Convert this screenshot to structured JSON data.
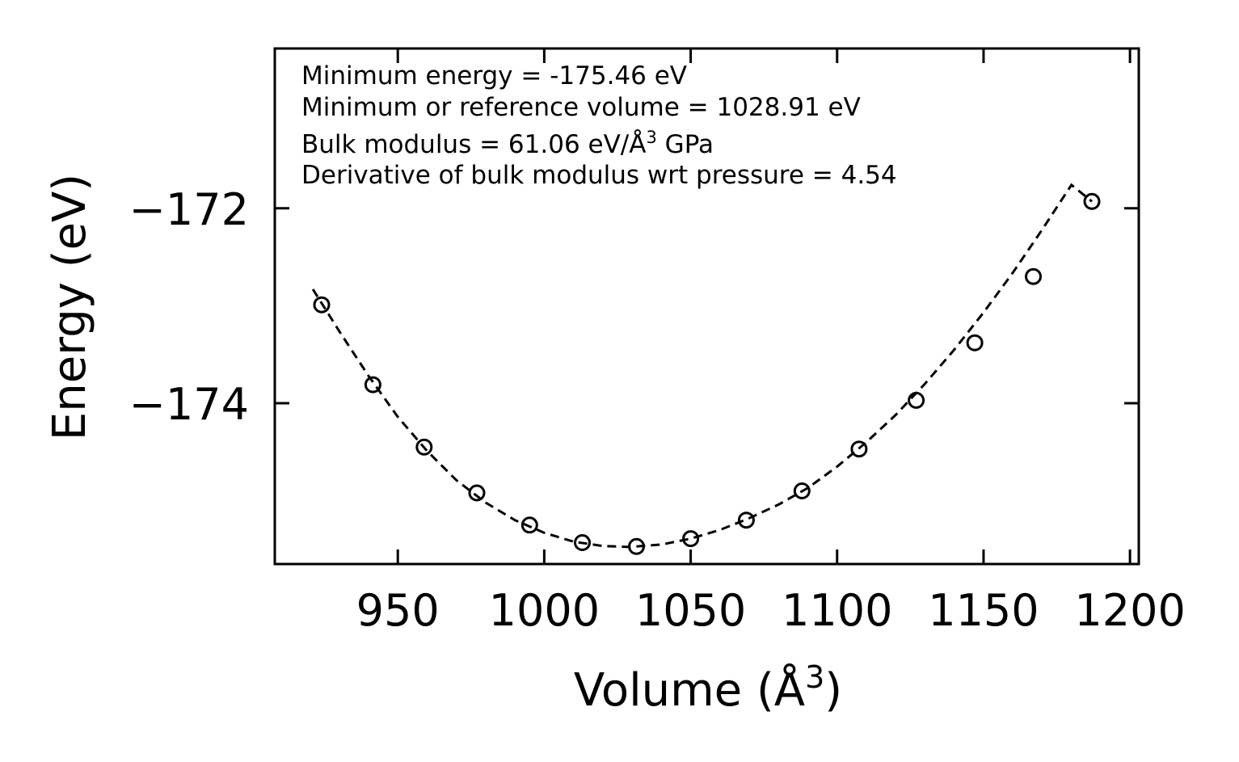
{
  "chart_data": {
    "type": "scatter",
    "xlabel": "Volume (Å",
    "xlabel_sup": "3",
    "xlabel_close": ")",
    "ylabel": "Energy (eV)",
    "xlim": [
      908,
      1203
    ],
    "ylim": [
      -175.65,
      -170.36
    ],
    "xticks": [
      950,
      1000,
      1050,
      1100,
      1150,
      1200
    ],
    "xtick_labels": [
      "950",
      "1000",
      "1050",
      "1100",
      "1150",
      "1200"
    ],
    "yticks": [
      -172,
      -174
    ],
    "ytick_labels": [
      "−172",
      "−174"
    ],
    "annotations": {
      "line1": "Minimum energy = -175.46 eV",
      "line2": "Minimum or reference volume = 1028.91 eV",
      "line3_prefix": "Bulk modulus = 61.06 eV/Å",
      "line3_sup": "3",
      "line3_suffix": " GPa",
      "line4": "Derivative of bulk modulus wrt pressure = 4.54"
    },
    "series": [
      {
        "name": "data",
        "marker": "open-circle",
        "points": [
          {
            "x": 924.0,
            "y": -172.99
          },
          {
            "x": 941.5,
            "y": -173.81
          },
          {
            "x": 959.0,
            "y": -174.45
          },
          {
            "x": 977.0,
            "y": -174.92
          },
          {
            "x": 995.0,
            "y": -175.25
          },
          {
            "x": 1013.0,
            "y": -175.43
          },
          {
            "x": 1031.5,
            "y": -175.47
          },
          {
            "x": 1050.0,
            "y": -175.39
          },
          {
            "x": 1069.0,
            "y": -175.2
          },
          {
            "x": 1088.0,
            "y": -174.9
          },
          {
            "x": 1107.5,
            "y": -174.47
          },
          {
            "x": 1127.0,
            "y": -173.97
          },
          {
            "x": 1147.0,
            "y": -173.38
          },
          {
            "x": 1167.0,
            "y": -172.7
          },
          {
            "x": 1187.0,
            "y": -171.93
          }
        ]
      },
      {
        "name": "fit",
        "style": "dashed",
        "points": [
          {
            "x": 921,
            "y": -172.83
          },
          {
            "x": 930,
            "y": -173.26
          },
          {
            "x": 940,
            "y": -173.72
          },
          {
            "x": 950,
            "y": -174.14
          },
          {
            "x": 960,
            "y": -174.49
          },
          {
            "x": 970,
            "y": -174.79
          },
          {
            "x": 980,
            "y": -175.02
          },
          {
            "x": 990,
            "y": -175.2
          },
          {
            "x": 1000,
            "y": -175.33
          },
          {
            "x": 1010,
            "y": -175.42
          },
          {
            "x": 1020,
            "y": -175.465
          },
          {
            "x": 1029,
            "y": -175.475
          },
          {
            "x": 1040,
            "y": -175.45
          },
          {
            "x": 1050,
            "y": -175.39
          },
          {
            "x": 1060,
            "y": -175.3
          },
          {
            "x": 1070,
            "y": -175.18
          },
          {
            "x": 1080,
            "y": -175.04
          },
          {
            "x": 1090,
            "y": -174.87
          },
          {
            "x": 1100,
            "y": -174.65
          },
          {
            "x": 1110,
            "y": -174.4
          },
          {
            "x": 1120,
            "y": -174.12
          },
          {
            "x": 1130,
            "y": -173.8
          },
          {
            "x": 1140,
            "y": -173.45
          },
          {
            "x": 1150,
            "y": -173.07
          },
          {
            "x": 1160,
            "y": -172.66
          },
          {
            "x": 1170,
            "y": -172.22
          },
          {
            "x": 1180,
            "y": -171.76
          },
          {
            "x": 1187,
            "y": -171.93
          }
        ]
      }
    ]
  }
}
